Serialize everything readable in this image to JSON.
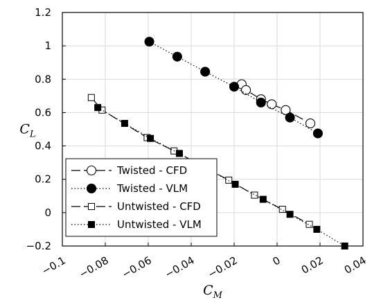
{
  "chart_data": {
    "type": "scatter",
    "title": "",
    "xlabel": {
      "main": "C",
      "sub": "M"
    },
    "ylabel": {
      "main": "C",
      "sub": "L"
    },
    "xlim": [
      -0.1,
      0.04
    ],
    "ylim": [
      -0.2,
      1.2
    ],
    "xticks": [
      -0.1,
      -0.08,
      -0.06,
      -0.04,
      -0.02,
      0,
      0.02,
      0.04
    ],
    "xtick_labels": [
      "−0.1",
      "−0.08",
      "−0.06",
      "−0.04",
      "−0.02",
      "0",
      "0.02",
      "0.04"
    ],
    "yticks": [
      -0.2,
      0,
      0.2,
      0.4,
      0.6,
      0.8,
      1,
      1.2
    ],
    "ytick_labels": [
      "−0.2",
      "0",
      "0.2",
      "0.4",
      "0.6",
      "0.8",
      "1",
      "1.2"
    ],
    "grid": true,
    "legend_position": "bottom-left",
    "series": [
      {
        "name": "Twisted - CFD",
        "line": "dashed",
        "marker": "circle",
        "filled": false,
        "x": [
          -0.0165,
          -0.0145,
          -0.0075,
          -0.0025,
          0.004,
          0.0155
        ],
        "y": [
          0.77,
          0.735,
          0.68,
          0.65,
          0.615,
          0.535
        ]
      },
      {
        "name": "Twisted - VLM",
        "line": "dotted",
        "marker": "circle",
        "filled": true,
        "x": [
          -0.0595,
          -0.0465,
          -0.0335,
          -0.02,
          -0.0075,
          0.006,
          0.019
        ],
        "y": [
          1.025,
          0.935,
          0.845,
          0.755,
          0.66,
          0.57,
          0.475
        ]
      },
      {
        "name": "Untwisted - CFD",
        "line": "dashed",
        "marker": "square",
        "filled": false,
        "x": [
          -0.0865,
          -0.0815,
          -0.0605,
          -0.048,
          -0.0225,
          -0.0105,
          0.0025,
          0.015
        ],
        "y": [
          0.69,
          0.615,
          0.45,
          0.37,
          0.195,
          0.105,
          0.02,
          -0.07
        ]
      },
      {
        "name": "Untwisted - VLM",
        "line": "dotted",
        "marker": "square",
        "filled": true,
        "x": [
          -0.0835,
          -0.071,
          -0.059,
          -0.0455,
          -0.0195,
          -0.0065,
          0.006,
          0.0185,
          0.0315
        ],
        "y": [
          0.63,
          0.535,
          0.445,
          0.355,
          0.17,
          0.08,
          -0.01,
          -0.1,
          -0.2
        ]
      }
    ]
  }
}
